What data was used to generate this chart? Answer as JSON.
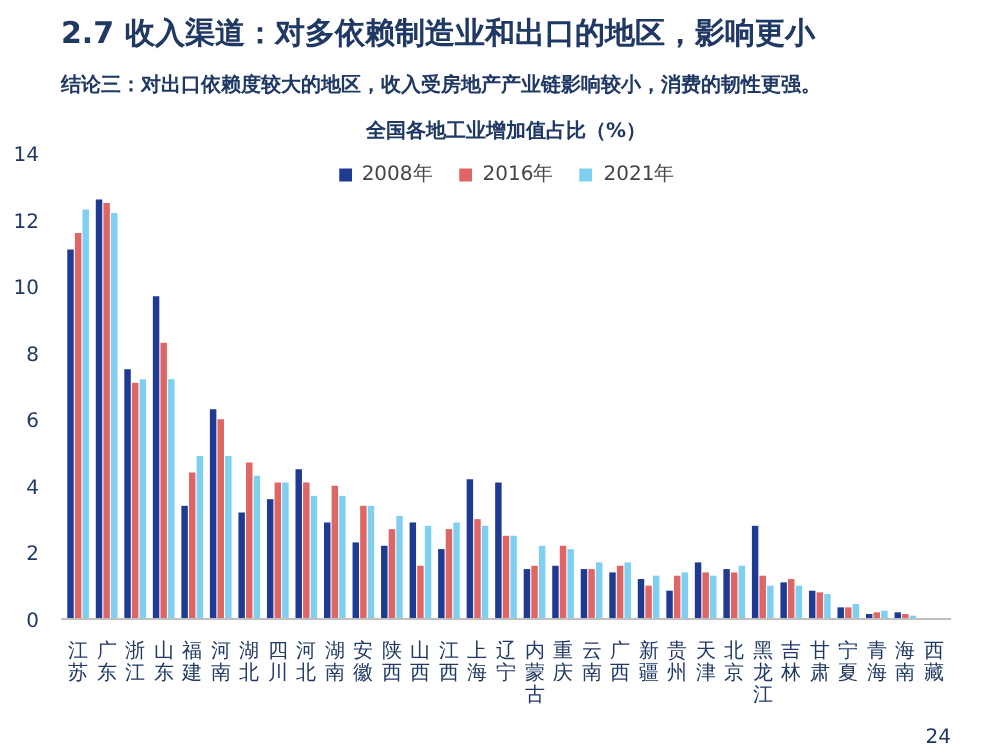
{
  "chart_data": {
    "type": "bar",
    "title": "2.7 收入渠道：对多依赖制造业和出口的地区，影响更小",
    "subtitle": "结论三：对出口依赖度较大的地区，收入受房地产产业链影响较小，消费的韧性更强。",
    "annotations": [
      "全国各地工业增加值占比（%）",
      "24"
    ],
    "categories": [
      "江苏",
      "广东",
      "浙江",
      "山东",
      "福建",
      "河南",
      "湖北",
      "四川",
      "河北",
      "湖南",
      "安徽",
      "陕西",
      "山西",
      "江西",
      "上海",
      "辽宁",
      "内蒙古",
      "重庆",
      "云南",
      "广西",
      "新疆",
      "贵州",
      "天津",
      "北京",
      "黑龙江",
      "吉林",
      "甘肃",
      "宁夏",
      "青海",
      "海南",
      "西藏"
    ],
    "series": [
      {
        "name": "2008年",
        "color": "#1f3a93",
        "values": [
          11.1,
          12.6,
          7.5,
          9.7,
          3.4,
          6.3,
          3.2,
          3.6,
          4.5,
          2.9,
          2.3,
          2.2,
          2.9,
          2.1,
          4.2,
          4.1,
          1.5,
          1.6,
          1.5,
          1.4,
          1.2,
          0.85,
          1.7,
          1.5,
          2.8,
          1.1,
          0.85,
          0.35,
          0.15,
          0.2,
          null
        ]
      },
      {
        "name": "2016年",
        "color": "#e06666",
        "values": [
          11.6,
          12.5,
          7.1,
          8.3,
          4.4,
          6.0,
          4.7,
          4.1,
          4.1,
          4.0,
          3.4,
          2.7,
          1.6,
          2.7,
          3.0,
          2.5,
          1.6,
          2.2,
          1.5,
          1.6,
          1.0,
          1.3,
          1.4,
          1.4,
          1.3,
          1.2,
          0.8,
          0.35,
          0.2,
          0.15,
          null
        ]
      },
      {
        "name": "2021年",
        "color": "#7fd0f0",
        "values": [
          12.3,
          12.2,
          7.2,
          7.2,
          4.9,
          4.9,
          4.3,
          4.1,
          3.7,
          3.7,
          3.4,
          3.1,
          2.8,
          2.9,
          2.8,
          2.5,
          2.2,
          2.1,
          1.7,
          1.7,
          1.3,
          1.4,
          1.3,
          1.6,
          1.0,
          1.0,
          0.75,
          0.45,
          0.25,
          0.1,
          null
        ]
      }
    ],
    "ylim": [
      0,
      14
    ],
    "yticks": [
      0,
      2,
      4,
      6,
      8,
      10,
      12,
      14
    ],
    "grid": false,
    "legend": "top"
  }
}
